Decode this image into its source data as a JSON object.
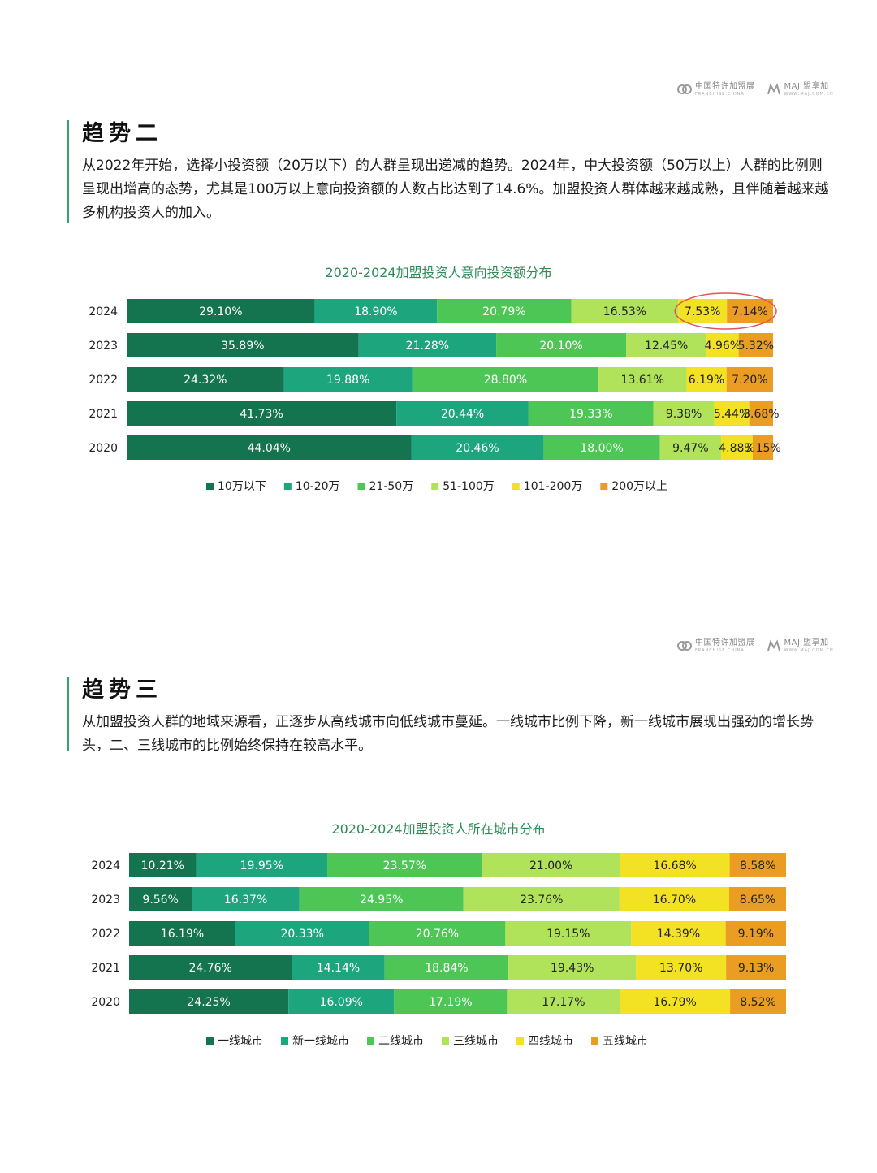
{
  "logos": [
    {
      "name": "中国特许加盟展",
      "sub": "FRANCHISE CHINA"
    },
    {
      "name": "MAJ 盟享加",
      "sub": "WWW.MAJ.COM.CN"
    }
  ],
  "section_two": {
    "heading": "趋势二",
    "body": "从2022年开始，选择小投资额（20万以下）的人群呈现出递减的趋势。2024年，中大投资额（50万以上）人群的比例则呈现出增高的态势，尤其是100万以上意向投资额的人数占比达到了14.6%。加盟投资人群体越来越成熟，且伴随着越来越多机构投资人的加入。"
  },
  "section_three": {
    "heading": "趋势三",
    "body": "从加盟投资人群的地域来源看，正逐步从高线城市向低线城市蔓延。一线城市比例下降，新一线城市展现出强劲的增长势头，二、三线城市的比例始终保持在较高水平。"
  },
  "colors": [
    "#13744f",
    "#1da67e",
    "#4ec656",
    "#b0e25a",
    "#f3e123",
    "#eb9c22"
  ],
  "chart_data": [
    {
      "type": "bar",
      "orientation": "horizontal-stacked",
      "title": "2020-2024加盟投资人意向投资额分布",
      "categories": [
        "2024",
        "2023",
        "2022",
        "2021",
        "2020"
      ],
      "series": [
        {
          "name": "10万以下",
          "values": [
            29.1,
            35.89,
            24.32,
            41.73,
            44.04
          ]
        },
        {
          "name": "10-20万",
          "values": [
            18.9,
            21.28,
            19.88,
            20.44,
            20.46
          ]
        },
        {
          "name": "21-50万",
          "values": [
            20.79,
            20.1,
            28.8,
            19.33,
            18.0
          ]
        },
        {
          "name": "51-100万",
          "values": [
            16.53,
            12.45,
            13.61,
            9.38,
            9.47
          ]
        },
        {
          "name": "101-200万",
          "values": [
            7.53,
            4.96,
            6.19,
            5.44,
            4.88
          ]
        },
        {
          "name": "200万以上",
          "values": [
            7.14,
            5.32,
            7.2,
            3.68,
            3.15
          ]
        }
      ],
      "highlight": {
        "category": "2024",
        "series": [
          "101-200万",
          "200万以上"
        ]
      },
      "legend_position": "bottom"
    },
    {
      "type": "bar",
      "orientation": "horizontal-stacked",
      "title": "2020-2024加盟投资人所在城市分布",
      "categories": [
        "2024",
        "2023",
        "2022",
        "2021",
        "2020"
      ],
      "series": [
        {
          "name": "一线城市",
          "values": [
            10.21,
            9.56,
            16.19,
            24.76,
            24.25
          ]
        },
        {
          "name": "新一线城市",
          "values": [
            19.95,
            16.37,
            20.33,
            14.14,
            16.09
          ]
        },
        {
          "name": "二线城市",
          "values": [
            23.57,
            24.95,
            20.76,
            18.84,
            17.19
          ]
        },
        {
          "name": "三线城市",
          "values": [
            21.0,
            23.76,
            19.15,
            19.43,
            17.17
          ]
        },
        {
          "name": "四线城市",
          "values": [
            16.68,
            16.7,
            14.39,
            13.7,
            16.79
          ]
        },
        {
          "name": "五线城市",
          "values": [
            8.58,
            8.65,
            9.19,
            9.13,
            8.52
          ]
        }
      ],
      "legend_position": "bottom"
    }
  ]
}
